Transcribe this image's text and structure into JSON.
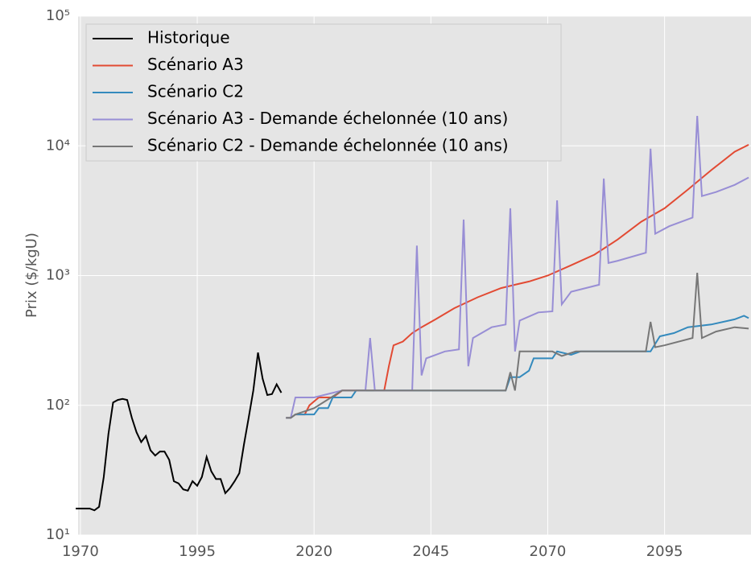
{
  "chart_data": {
    "type": "line",
    "y_label": "Prix ($/kgU)",
    "log_y": true,
    "grid": true,
    "legend": "upper left",
    "xlim": [
      1969.5,
      2113.5
    ],
    "xticks": [
      1970,
      1995,
      2020,
      2045,
      2070,
      2095
    ],
    "ylim": [
      10,
      100000
    ],
    "yticks": [
      {
        "value": 10,
        "label": "10¹"
      },
      {
        "value": 100,
        "label": "10²"
      },
      {
        "value": 1000,
        "label": "10³"
      },
      {
        "value": 10000,
        "label": "10⁴"
      },
      {
        "value": 100000,
        "label": "10⁵"
      }
    ],
    "series": [
      {
        "name": "Historique",
        "color": "#000000",
        "x": [
          1969,
          1972,
          1973,
          1974,
          1975,
          1976,
          1977,
          1978,
          1979,
          1980,
          1981,
          1982,
          1983,
          1984,
          1985,
          1986,
          1987,
          1988,
          1989,
          1990,
          1991,
          1992,
          1993,
          1994,
          1995,
          1996,
          1997,
          1998,
          1999,
          2000,
          2001,
          2002,
          2003,
          2004,
          2005,
          2006,
          2007,
          2008,
          2009,
          2010,
          2011,
          2012,
          2013
        ],
        "values": [
          16,
          16,
          15.5,
          16.5,
          28,
          60,
          105,
          110,
          112,
          110,
          80,
          62,
          52,
          58,
          45,
          41,
          44,
          44,
          38,
          26,
          25,
          22.5,
          22,
          26,
          24,
          28,
          40,
          31,
          27,
          27,
          21,
          23,
          26,
          30,
          50,
          80,
          130,
          255,
          160,
          120,
          122,
          145,
          125
        ]
      },
      {
        "name": "Scénario A3",
        "color": "#e24a33",
        "x": [
          2014,
          2015,
          2016,
          2018,
          2019,
          2021,
          2024,
          2026,
          2035,
          2036,
          2037,
          2039,
          2041,
          2043,
          2046,
          2050,
          2055,
          2060,
          2063,
          2066,
          2070,
          2075,
          2080,
          2085,
          2090,
          2095,
          2100,
          2105,
          2110,
          2113
        ],
        "values": [
          80,
          80,
          85,
          85,
          100,
          115,
          115,
          130,
          130,
          200,
          290,
          310,
          360,
          400,
          460,
          560,
          680,
          800,
          850,
          900,
          1000,
          1200,
          1450,
          1900,
          2600,
          3300,
          4600,
          6500,
          9000,
          10200
        ]
      },
      {
        "name": "Scénario C2",
        "color": "#348abd",
        "x": [
          2014,
          2015,
          2016,
          2020,
          2021,
          2023,
          2024,
          2028,
          2029,
          2061,
          2062,
          2064,
          2066,
          2067,
          2071,
          2072,
          2075,
          2077,
          2092,
          2094,
          2097,
          2100,
          2105,
          2110,
          2112,
          2113
        ],
        "values": [
          80,
          80,
          85,
          85,
          95,
          95,
          115,
          115,
          130,
          130,
          165,
          165,
          185,
          230,
          230,
          260,
          245,
          260,
          260,
          340,
          360,
          400,
          420,
          460,
          490,
          470
        ]
      },
      {
        "name": "Scénario A3 - Demande échelonnée (10 ans)",
        "color": "#988ed5",
        "x": [
          2014,
          2015,
          2016,
          2020,
          2026,
          2031,
          2032,
          2033,
          2041,
          2042,
          2043,
          2044,
          2048,
          2051,
          2052,
          2053,
          2054,
          2058,
          2061,
          2062,
          2063,
          2064,
          2068,
          2071,
          2072,
          2073,
          2075,
          2081,
          2082,
          2083,
          2085,
          2091,
          2092,
          2093,
          2096,
          2101,
          2102,
          2103,
          2106,
          2110,
          2113
        ],
        "values": [
          80,
          80,
          115,
          115,
          130,
          130,
          330,
          130,
          130,
          1700,
          170,
          230,
          260,
          270,
          2700,
          200,
          330,
          400,
          420,
          3300,
          260,
          450,
          520,
          530,
          3800,
          600,
          750,
          850,
          5600,
          1250,
          1300,
          1500,
          9500,
          2100,
          2400,
          2800,
          17000,
          4100,
          4400,
          5000,
          5700
        ]
      },
      {
        "name": "Scénario C2 - Demande échelonnée (10 ans)",
        "color": "#777777",
        "x": [
          2014,
          2015,
          2016,
          2020,
          2026,
          2061,
          2062,
          2063,
          2064,
          2071,
          2073,
          2076,
          2091,
          2092,
          2093,
          2095,
          2101,
          2102,
          2103,
          2106,
          2110,
          2113
        ],
        "values": [
          80,
          80,
          85,
          95,
          130,
          130,
          180,
          130,
          260,
          260,
          240,
          260,
          260,
          440,
          280,
          290,
          330,
          1050,
          330,
          370,
          400,
          390
        ]
      }
    ]
  }
}
